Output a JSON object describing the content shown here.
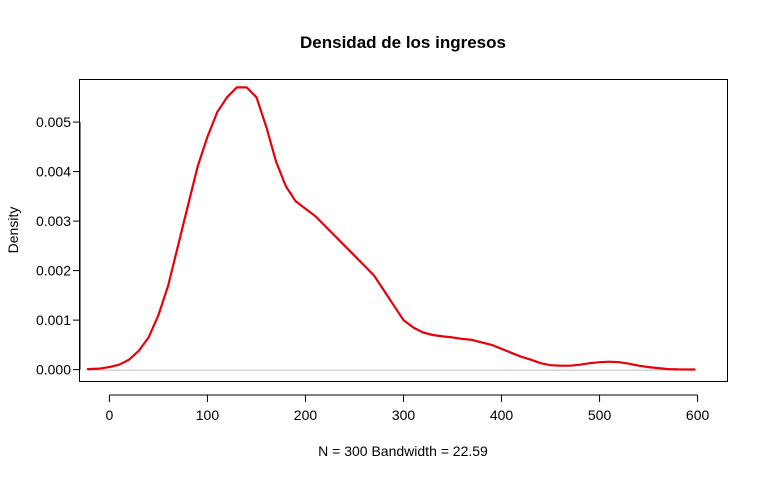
{
  "chart_data": {
    "type": "line",
    "title": "Densidad de los ingresos",
    "xlabel": "N = 300   Bandwidth = 22.59",
    "ylabel": "Density",
    "xlim": [
      -30,
      630
    ],
    "ylim": [
      -0.00023,
      0.00585
    ],
    "x_ticks": [
      0,
      100,
      200,
      300,
      400,
      500,
      600
    ],
    "y_ticks": [
      0.0,
      0.001,
      0.002,
      0.003,
      0.004,
      0.005
    ],
    "x_tick_labels": [
      "0",
      "100",
      "200",
      "300",
      "400",
      "500",
      "600"
    ],
    "y_tick_labels": [
      "0.000",
      "0.001",
      "0.002",
      "0.003",
      "0.004",
      "0.005"
    ],
    "baseline": 0,
    "grid": false,
    "series": [
      {
        "color": "#e8000b",
        "x": [
          -22,
          -10,
          0,
          10,
          20,
          30,
          40,
          50,
          60,
          70,
          80,
          90,
          100,
          110,
          120,
          130,
          140,
          150,
          160,
          170,
          180,
          190,
          200,
          210,
          220,
          230,
          240,
          250,
          260,
          270,
          280,
          290,
          300,
          310,
          320,
          330,
          340,
          350,
          360,
          370,
          380,
          390,
          400,
          410,
          420,
          430,
          440,
          450,
          460,
          470,
          480,
          490,
          500,
          510,
          520,
          530,
          540,
          550,
          560,
          570,
          580,
          597
        ],
        "y": [
          1e-05,
          2e-05,
          5e-05,
          0.0001,
          0.0002,
          0.00038,
          0.00065,
          0.0011,
          0.0017,
          0.0025,
          0.0033,
          0.0041,
          0.0047,
          0.0052,
          0.0055,
          0.0057,
          0.0057,
          0.0055,
          0.0049,
          0.0042,
          0.0037,
          0.0034,
          0.00325,
          0.0031,
          0.0029,
          0.0027,
          0.0025,
          0.0023,
          0.0021,
          0.0019,
          0.0016,
          0.0013,
          0.001,
          0.00085,
          0.00075,
          0.0007,
          0.00067,
          0.00065,
          0.00062,
          0.0006,
          0.00055,
          0.0005,
          0.00042,
          0.00034,
          0.00026,
          0.0002,
          0.00013,
          9e-05,
          8e-05,
          8e-05,
          0.0001,
          0.00013,
          0.00015,
          0.00016,
          0.00015,
          0.00012,
          8e-05,
          5e-05,
          3e-05,
          1e-05,
          5e-06,
          2e-06
        ]
      }
    ]
  }
}
